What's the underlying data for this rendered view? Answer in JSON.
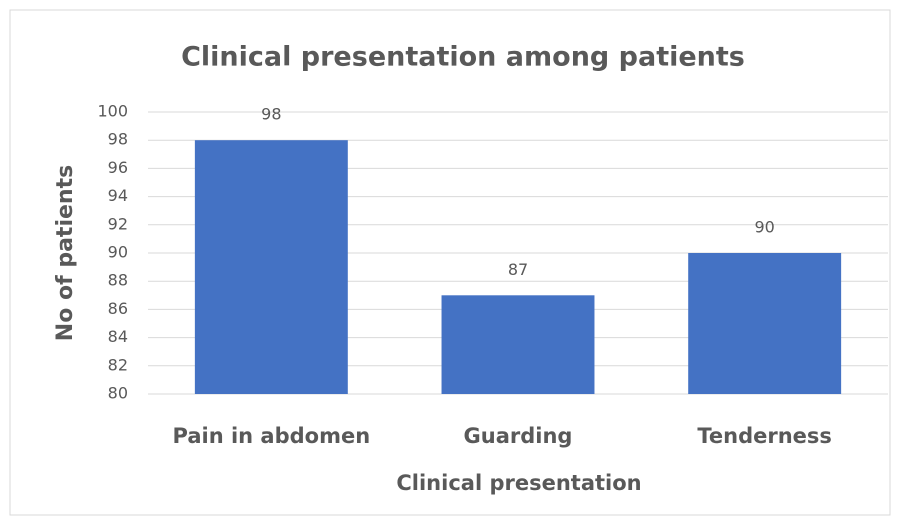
{
  "chart_data": {
    "type": "bar",
    "title": "Clinical presentation among patients",
    "x_label": "Clinical presentation",
    "y_label": "No of patients",
    "categories": [
      "Pain in abdomen",
      "Guarding",
      "Tenderness"
    ],
    "values": [
      98,
      87,
      90
    ],
    "color": "#4472c4",
    "ylim": [
      80,
      100
    ],
    "yticks": [
      80,
      82,
      84,
      86,
      88,
      90,
      92,
      94,
      96,
      98,
      100
    ],
    "grid": true
  }
}
